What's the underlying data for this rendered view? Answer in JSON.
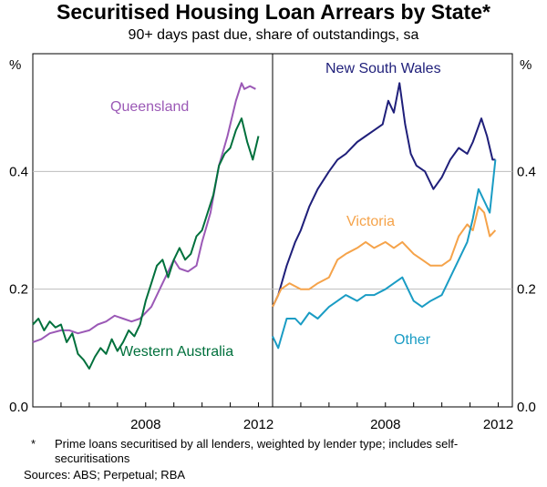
{
  "title": "Securitised Housing Loan Arrears by State*",
  "subtitle": "90+ days past due, share of outstandings, sa",
  "y_unit": "%",
  "footnote_marker": "*",
  "footnote": "Prime loans securitised by all lenders, weighted by lender type; includes self-securitisations",
  "sources": "Sources: ABS; Perpetual; RBA",
  "colors": {
    "queensland": "#9b59b6",
    "western_australia": "#00703c",
    "new_south_wales": "#1f1f7a",
    "victoria": "#f5a34a",
    "other": "#1a9cc4"
  },
  "chart_data": [
    {
      "type": "line",
      "panel": "left",
      "ylim": [
        0.0,
        0.6
      ],
      "yticks": [
        "0.0",
        "0.2",
        "0.4"
      ],
      "xlim": [
        2004.0,
        2012.5
      ],
      "xticks": [
        "2008",
        "2012"
      ],
      "grid": true,
      "series": [
        {
          "name": "Queensland",
          "x": [
            2004.0,
            2004.3,
            2004.6,
            2005.0,
            2005.3,
            2005.6,
            2006.0,
            2006.3,
            2006.6,
            2006.9,
            2007.2,
            2007.5,
            2007.8,
            2008.0,
            2008.2,
            2008.5,
            2008.8,
            2009.0,
            2009.2,
            2009.5,
            2009.8,
            2010.0,
            2010.3,
            2010.6,
            2010.9,
            2011.2,
            2011.4,
            2011.5,
            2011.7,
            2011.9
          ],
          "values": [
            0.11,
            0.115,
            0.125,
            0.13,
            0.13,
            0.125,
            0.13,
            0.14,
            0.145,
            0.155,
            0.15,
            0.145,
            0.15,
            0.16,
            0.17,
            0.2,
            0.23,
            0.25,
            0.235,
            0.23,
            0.24,
            0.28,
            0.33,
            0.41,
            0.46,
            0.52,
            0.55,
            0.54,
            0.545,
            0.54
          ]
        },
        {
          "name": "Western Australia",
          "x": [
            2004.0,
            2004.2,
            2004.4,
            2004.6,
            2004.8,
            2005.0,
            2005.2,
            2005.4,
            2005.6,
            2005.8,
            2006.0,
            2006.2,
            2006.4,
            2006.6,
            2006.8,
            2007.0,
            2007.2,
            2007.4,
            2007.6,
            2007.8,
            2008.0,
            2008.2,
            2008.4,
            2008.6,
            2008.8,
            2009.0,
            2009.2,
            2009.4,
            2009.6,
            2009.8,
            2010.0,
            2010.2,
            2010.4,
            2010.6,
            2010.8,
            2011.0,
            2011.2,
            2011.4,
            2011.6,
            2011.8,
            2012.0
          ],
          "values": [
            0.14,
            0.15,
            0.13,
            0.145,
            0.135,
            0.14,
            0.11,
            0.125,
            0.09,
            0.08,
            0.065,
            0.085,
            0.1,
            0.09,
            0.115,
            0.095,
            0.11,
            0.13,
            0.12,
            0.14,
            0.18,
            0.21,
            0.24,
            0.25,
            0.22,
            0.25,
            0.27,
            0.25,
            0.26,
            0.29,
            0.3,
            0.33,
            0.36,
            0.41,
            0.43,
            0.44,
            0.47,
            0.49,
            0.45,
            0.42,
            0.46
          ]
        }
      ]
    },
    {
      "type": "line",
      "panel": "right",
      "ylim": [
        0.0,
        0.6
      ],
      "yticks": [
        "0.0",
        "0.2",
        "0.4"
      ],
      "xlim": [
        2004.0,
        2012.5
      ],
      "xticks": [
        "2008",
        "2012"
      ],
      "grid": true,
      "series": [
        {
          "name": "New South Wales",
          "x": [
            2004.0,
            2004.2,
            2004.5,
            2004.8,
            2005.0,
            2005.3,
            2005.6,
            2006.0,
            2006.3,
            2006.6,
            2007.0,
            2007.3,
            2007.6,
            2007.9,
            2008.1,
            2008.3,
            2008.5,
            2008.7,
            2008.9,
            2009.1,
            2009.4,
            2009.7,
            2010.0,
            2010.3,
            2010.6,
            2010.9,
            2011.1,
            2011.4,
            2011.6,
            2011.8,
            2011.9
          ],
          "values": [
            0.17,
            0.19,
            0.24,
            0.28,
            0.3,
            0.34,
            0.37,
            0.4,
            0.42,
            0.43,
            0.45,
            0.46,
            0.47,
            0.48,
            0.52,
            0.5,
            0.55,
            0.48,
            0.43,
            0.41,
            0.4,
            0.37,
            0.39,
            0.42,
            0.44,
            0.43,
            0.45,
            0.49,
            0.46,
            0.42,
            0.42
          ]
        },
        {
          "name": "Victoria",
          "x": [
            2004.0,
            2004.3,
            2004.6,
            2005.0,
            2005.3,
            2005.6,
            2006.0,
            2006.3,
            2006.6,
            2007.0,
            2007.3,
            2007.6,
            2008.0,
            2008.3,
            2008.6,
            2009.0,
            2009.3,
            2009.6,
            2010.0,
            2010.3,
            2010.6,
            2010.9,
            2011.1,
            2011.3,
            2011.5,
            2011.7,
            2011.9
          ],
          "values": [
            0.17,
            0.2,
            0.21,
            0.2,
            0.2,
            0.21,
            0.22,
            0.25,
            0.26,
            0.27,
            0.28,
            0.27,
            0.28,
            0.27,
            0.28,
            0.26,
            0.25,
            0.24,
            0.24,
            0.25,
            0.29,
            0.31,
            0.3,
            0.34,
            0.33,
            0.29,
            0.3
          ]
        },
        {
          "name": "Other",
          "x": [
            2004.0,
            2004.2,
            2004.5,
            2004.8,
            2005.0,
            2005.3,
            2005.6,
            2006.0,
            2006.3,
            2006.6,
            2007.0,
            2007.3,
            2007.6,
            2008.0,
            2008.3,
            2008.6,
            2009.0,
            2009.3,
            2009.6,
            2010.0,
            2010.3,
            2010.6,
            2010.9,
            2011.1,
            2011.3,
            2011.5,
            2011.7,
            2011.9
          ],
          "values": [
            0.12,
            0.1,
            0.15,
            0.15,
            0.14,
            0.16,
            0.15,
            0.17,
            0.18,
            0.19,
            0.18,
            0.19,
            0.19,
            0.2,
            0.21,
            0.22,
            0.18,
            0.17,
            0.18,
            0.19,
            0.22,
            0.25,
            0.28,
            0.32,
            0.37,
            0.35,
            0.33,
            0.42
          ]
        }
      ]
    }
  ],
  "series_labels": {
    "queensland": "Queensland",
    "western_australia": "Western Australia",
    "new_south_wales": "New South Wales",
    "victoria": "Victoria",
    "other": "Other"
  }
}
